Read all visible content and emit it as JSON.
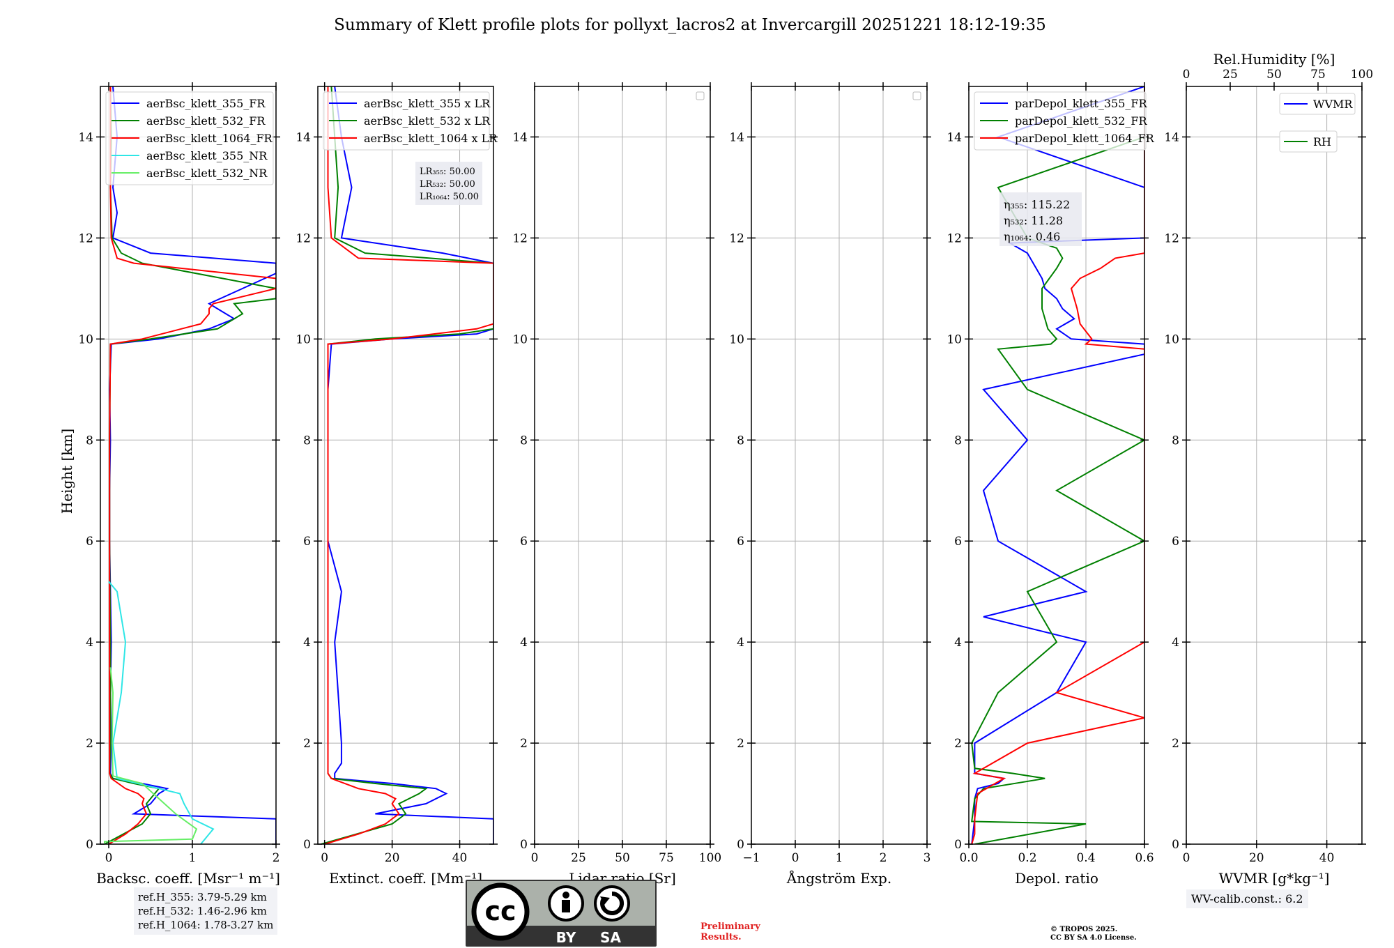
{
  "title": "Summary of Klett profile plots for pollyxt_lacros2 at Invercargill 20251221 18:12-19:35",
  "ylabel": "Height [km]",
  "colors": {
    "c355": "#0000ff",
    "c532": "#008000",
    "c1064": "#ff0000",
    "c355nr": "#2ee6e6",
    "c532nr": "#66ee66",
    "grid": "#b0b0b0"
  },
  "chart_data": [
    {
      "type": "line",
      "id": "bsc",
      "xlabel": "Backsc. coeff. [Msr⁻¹ m⁻¹]",
      "xlim": [
        -0.1,
        2
      ],
      "ylim": [
        0,
        15
      ],
      "xticks": [
        0,
        1,
        2
      ],
      "xticklabels": [
        "0",
        "1",
        "2"
      ],
      "legend": [
        "aerBsc_klett_355_FR",
        "aerBsc_klett_532_FR",
        "aerBsc_klett_1064_FR",
        "aerBsc_klett_355_NR",
        "aerBsc_klett_532_NR"
      ],
      "series": [
        {
          "name": "aerBsc_klett_355_FR",
          "color": "c355",
          "y": [
            0,
            0.5,
            0.6,
            0.8,
            1.0,
            1.1,
            1.2,
            1.3,
            1.4,
            2,
            3,
            4,
            5,
            6,
            7,
            8,
            9,
            9.9,
            10.0,
            10.2,
            10.4,
            10.5,
            10.7,
            11.0,
            11.3,
            11.5,
            11.7,
            12.0,
            12.5,
            13,
            14,
            15
          ],
          "x": [
            2,
            2,
            0.3,
            0.5,
            0.6,
            0.7,
            0.4,
            0.05,
            0.02,
            0.03,
            0.02,
            0.03,
            0.02,
            0.01,
            0.01,
            0.02,
            0.01,
            0.03,
            0.6,
            1.2,
            1.5,
            1.4,
            1.2,
            1.6,
            2,
            2,
            0.5,
            0.05,
            0.1,
            0.05,
            0.1,
            0.05
          ]
        },
        {
          "name": "aerBsc_klett_532_FR",
          "color": "c532",
          "y": [
            0,
            0.4,
            0.6,
            0.8,
            1.0,
            1.1,
            1.2,
            1.3,
            1.4,
            2,
            4,
            6,
            8,
            9.9,
            10.0,
            10.2,
            10.5,
            10.7,
            10.8,
            11.0,
            11.5,
            11.7,
            12,
            13,
            14,
            15
          ],
          "x": [
            -0.05,
            0.4,
            0.5,
            0.45,
            0.55,
            0.6,
            0.3,
            0.05,
            0.01,
            0.02,
            0.02,
            0.01,
            0.01,
            0.02,
            0.5,
            1.3,
            1.6,
            1.5,
            2,
            2,
            0.4,
            0.15,
            0.04,
            0.02,
            0.03,
            0.02
          ]
        },
        {
          "name": "aerBsc_klett_1064_FR",
          "color": "c1064",
          "y": [
            0,
            0.2,
            0.4,
            0.6,
            0.8,
            0.9,
            1.0,
            1.1,
            1.3,
            1.4,
            2,
            4,
            6,
            8,
            9.9,
            10.0,
            10.3,
            10.5,
            10.6,
            10.7,
            11,
            11.2,
            11.5,
            11.6,
            12,
            13,
            14,
            15
          ],
          "x": [
            0,
            0.2,
            0.35,
            0.45,
            0.4,
            0.42,
            0.35,
            0.2,
            0.03,
            0.01,
            0.01,
            0.01,
            0.01,
            0.01,
            0.02,
            0.4,
            1.1,
            1.2,
            1.2,
            1.25,
            2,
            2,
            0.3,
            0.1,
            0.03,
            0.02,
            0.02,
            0.02
          ]
        },
        {
          "name": "aerBsc_klett_355_NR",
          "color": "c355nr",
          "y": [
            0,
            0.1,
            0.2,
            0.3,
            0.5,
            0.8,
            1.0,
            1.3,
            2,
            3,
            4,
            5,
            5.2
          ],
          "x": [
            1.1,
            1.15,
            1.2,
            1.25,
            1.0,
            0.9,
            0.85,
            0.1,
            0.05,
            0.15,
            0.2,
            0.1,
            0.0
          ]
        },
        {
          "name": "aerBsc_klett_532_NR",
          "color": "c532nr",
          "y": [
            0,
            0.05,
            0.1,
            0.3,
            0.6,
            0.9,
            1.2,
            1.35,
            2,
            3,
            3.5
          ],
          "x": [
            -0.05,
            -0.05,
            1.0,
            1.05,
            0.8,
            0.6,
            0.4,
            0.05,
            0.04,
            0.05,
            0.02
          ]
        }
      ]
    },
    {
      "type": "line",
      "id": "ext",
      "xlabel": "Extinct. coeff. [Mm⁻¹]",
      "xlim": [
        -2,
        50
      ],
      "ylim": [
        0,
        15
      ],
      "xticks": [
        0,
        20,
        40
      ],
      "xticklabels": [
        "0",
        "20",
        "40"
      ],
      "legend": [
        "aerBsc_klett_355 x LR",
        "aerBsc_klett_532 x LR",
        "aerBsc_klett_1064 x LR"
      ],
      "annotation": [
        "LR₃₅₅: 50.00",
        "LR₅₃₂: 50.00",
        "LR₁₀₆₄: 50.00"
      ],
      "series": [
        {
          "name": "aerBsc_klett_355 x LR",
          "color": "c355",
          "y": [
            0,
            0.5,
            0.6,
            0.8,
            1.0,
            1.1,
            1.2,
            1.3,
            1.4,
            1.6,
            2,
            3,
            4,
            5,
            6,
            7,
            8,
            9,
            9.9,
            10.0,
            10.1,
            10.2,
            10.3,
            11.5,
            11.7,
            12,
            13,
            14,
            15
          ],
          "x": [
            50,
            50,
            15,
            30,
            36,
            33,
            20,
            3,
            3,
            5,
            5,
            4,
            3,
            5,
            1,
            1,
            1,
            1,
            2,
            20,
            45,
            50,
            50,
            50,
            35,
            5,
            8,
            5,
            3
          ]
        },
        {
          "name": "aerBsc_klett_532 x LR",
          "color": "c532",
          "y": [
            0,
            0.4,
            0.6,
            0.8,
            1.0,
            1.1,
            1.2,
            1.3,
            1.4,
            2,
            4,
            6,
            8,
            9.9,
            10.0,
            10.1,
            10.2,
            11.5,
            11.7,
            12,
            13,
            14,
            15
          ],
          "x": [
            -1,
            20,
            24,
            22,
            28,
            30,
            15,
            2,
            1,
            1,
            1,
            1,
            1,
            1,
            15,
            40,
            50,
            50,
            12,
            3,
            4,
            3,
            2
          ]
        },
        {
          "name": "aerBsc_klett_1064 x LR",
          "color": "c1064",
          "y": [
            0,
            0.2,
            0.4,
            0.6,
            0.8,
            0.9,
            1.0,
            1.1,
            1.3,
            1.4,
            2,
            4,
            6,
            8,
            9.9,
            10.0,
            10.2,
            10.3,
            11.5,
            11.6,
            12,
            13,
            14,
            15
          ],
          "x": [
            0,
            10,
            18,
            22,
            20,
            21,
            18,
            10,
            2,
            1,
            1,
            1,
            1,
            1,
            1,
            20,
            45,
            50,
            50,
            10,
            2,
            1,
            1,
            1
          ]
        }
      ]
    },
    {
      "type": "line",
      "id": "lr",
      "xlabel": "Lidar ratio [Sr]",
      "xlim": [
        0,
        100
      ],
      "ylim": [
        0,
        15
      ],
      "xticks": [
        0,
        25,
        50,
        75,
        100
      ],
      "xticklabels": [
        "0",
        "25",
        "50",
        "75",
        "100"
      ],
      "series": []
    },
    {
      "type": "line",
      "id": "ang",
      "xlabel": "Ångström Exp.",
      "xlim": [
        -1,
        3
      ],
      "ylim": [
        0,
        15
      ],
      "xticks": [
        -1,
        0,
        1,
        2,
        3
      ],
      "xticklabels": [
        "−1",
        "0",
        "1",
        "2",
        "3"
      ],
      "series": []
    },
    {
      "type": "line",
      "id": "depol",
      "xlabel": "Depol. ratio",
      "xlim": [
        0,
        0.6
      ],
      "ylim": [
        0,
        15
      ],
      "xticks": [
        0,
        0.2,
        0.4,
        0.6
      ],
      "xticklabels": [
        "0.0",
        "0.2",
        "0.4",
        "0.6"
      ],
      "legend": [
        "parDepol_klett_355_FR",
        "parDepol_klett_532_FR",
        "parDepol_klett_1064_FR"
      ],
      "annotation": [
        "η₃₅₅: 115.22",
        "η₅₃₂: 11.28",
        "η₁₀₆₄: 0.46"
      ],
      "series": [
        {
          "name": "parDepol_klett_355_FR",
          "color": "c355",
          "y": [
            0,
            0.5,
            0.9,
            1.1,
            1.2,
            1.3,
            1.4,
            2,
            3,
            4,
            4.5,
            5,
            6,
            7,
            8,
            9,
            9.7,
            9.9,
            10.0,
            10.2,
            10.4,
            10.6,
            10.8,
            11,
            11.2,
            11.5,
            11.7,
            11.9,
            12,
            13,
            14,
            15
          ],
          "x": [
            0.01,
            0.02,
            0.02,
            0.03,
            0.1,
            0.12,
            0.02,
            0.02,
            0.3,
            0.4,
            0.05,
            0.4,
            0.1,
            0.05,
            0.2,
            0.05,
            0.6,
            0.6,
            0.35,
            0.3,
            0.36,
            0.32,
            0.3,
            0.26,
            0.25,
            0.22,
            0.2,
            0.14,
            0.6,
            0.6,
            0.1,
            0.6
          ]
        },
        {
          "name": "parDepol_klett_532_FR",
          "color": "c532",
          "y": [
            0,
            0.4,
            0.45,
            0.9,
            1.1,
            1.3,
            1.4,
            1.5,
            2,
            3,
            4,
            5,
            6,
            7,
            8,
            9,
            9.8,
            9.9,
            10.0,
            10.2,
            10.6,
            11,
            11.4,
            11.6,
            11.8,
            12,
            13,
            14,
            15
          ],
          "x": [
            0.02,
            0.4,
            0.01,
            0.02,
            0.05,
            0.26,
            0.15,
            0.02,
            0.01,
            0.1,
            0.3,
            0.2,
            0.6,
            0.3,
            0.6,
            0.2,
            0.1,
            0.28,
            0.3,
            0.27,
            0.25,
            0.25,
            0.3,
            0.32,
            0.3,
            0.2,
            0.1,
            0.6,
            0.6
          ]
        },
        {
          "name": "parDepol_klett_1064_FR",
          "color": "c1064",
          "y": [
            0,
            0.2,
            0.5,
            1.0,
            1.3,
            1.4,
            2,
            2.5,
            3,
            4,
            5,
            6,
            7,
            8,
            9,
            9.8,
            9.9,
            10.0,
            10.3,
            10.6,
            11,
            11.2,
            11.4,
            11.6,
            11.7,
            11.9,
            12,
            13,
            14,
            15
          ],
          "x": [
            0.01,
            0.02,
            0.02,
            0.03,
            0.12,
            0.02,
            0.2,
            0.6,
            0.3,
            0.6,
            0.6,
            0.6,
            0.6,
            0.6,
            0.6,
            0.6,
            0.4,
            0.42,
            0.38,
            0.37,
            0.35,
            0.38,
            0.45,
            0.5,
            0.6,
            0.6,
            0.6,
            0.6,
            0.6,
            0.6
          ]
        }
      ]
    },
    {
      "type": "line",
      "id": "wv",
      "xlabel": "WVMR [g*kg⁻¹]",
      "xlim": [
        0,
        50
      ],
      "ylim": [
        0,
        15
      ],
      "xticks": [
        0,
        20,
        40
      ],
      "xticklabels": [
        "0",
        "20",
        "40"
      ],
      "top_xlabel": "Rel.Humidity [%]",
      "top_xlim": [
        0,
        100
      ],
      "top_xticks": [
        0,
        25,
        50,
        75,
        100
      ],
      "top_xticklabels": [
        "0",
        "25",
        "50",
        "75",
        "100"
      ],
      "legend": [
        "WVMR",
        "RH"
      ],
      "series": []
    }
  ],
  "yticks": [
    0,
    2,
    4,
    6,
    8,
    10,
    12,
    14
  ],
  "ref_box": [
    "ref.H_355: 3.79-5.29 km",
    "ref.H_532: 1.46-2.96 km",
    "ref.H_1064: 1.78-3.27 km"
  ],
  "cc_logo": {
    "text_by": "BY",
    "text_sa": "SA",
    "text_cc": "cc"
  },
  "preliminary": [
    "Preliminary",
    "Results."
  ],
  "copyright": [
    "© TROPOS 2025.",
    "CC BY SA 4.0 License."
  ],
  "wv_calib": "WV-calib.const.: 6.2"
}
